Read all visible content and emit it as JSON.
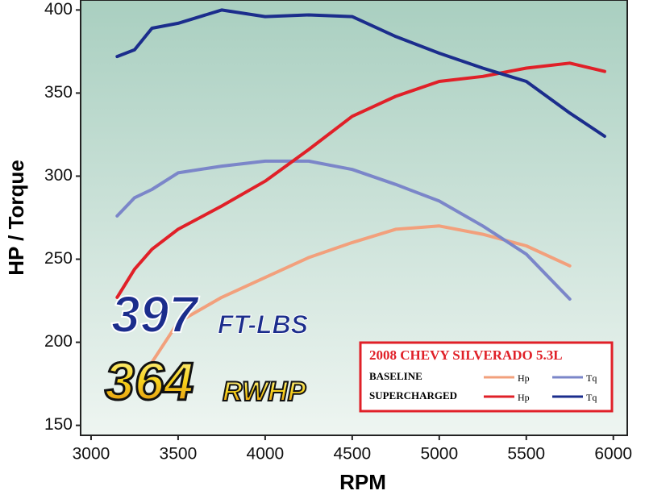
{
  "chart_data": {
    "type": "line",
    "xlabel": "RPM",
    "ylabel": "HP / Torque",
    "x": [
      3150,
      3250,
      3350,
      3500,
      3750,
      4000,
      4250,
      4500,
      4750,
      5000,
      5250,
      5500,
      5750,
      5950
    ],
    "xlim": [
      2940,
      6080
    ],
    "xticks": [
      3000,
      3500,
      4000,
      4500,
      5000,
      5500,
      6000
    ],
    "ylim": [
      144,
      406
    ],
    "yticks": [
      150,
      200,
      250,
      300,
      350,
      400
    ],
    "series": [
      {
        "name": "Hp",
        "group": "BASELINE",
        "color": "#f2a07c",
        "values": [
          null,
          null,
          188,
          212,
          227,
          239,
          251,
          260,
          268,
          270,
          265,
          258,
          246,
          null
        ]
      },
      {
        "name": "Tq",
        "group": "BASELINE",
        "color": "#7b86c9",
        "values": [
          276,
          287,
          292,
          302,
          306,
          309,
          309,
          304,
          295,
          285,
          270,
          253,
          226,
          null
        ]
      },
      {
        "name": "Hp",
        "group": "SUPERCHARGED",
        "color": "#e02028",
        "values": [
          227,
          244,
          256,
          268,
          282,
          297,
          316,
          336,
          348,
          357,
          360,
          365,
          368,
          363
        ]
      },
      {
        "name": "Tq",
        "group": "SUPERCHARGED",
        "color": "#1b2d8c",
        "values": [
          372,
          376,
          389,
          392,
          400,
          396,
          397,
          396,
          384,
          374,
          365,
          357,
          338,
          324
        ]
      }
    ],
    "legend": {
      "title": "2008 CHEVY SILVERADO 5.3L"
    },
    "annotations": [
      {
        "value": "397",
        "unit": "FT-LBS"
      },
      {
        "value": "364",
        "unit": "RWHP"
      }
    ]
  }
}
